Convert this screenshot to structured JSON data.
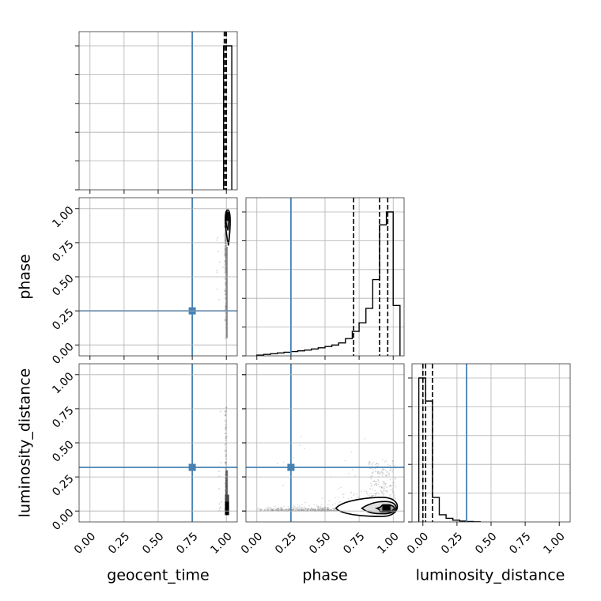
{
  "chart_data": {
    "type": "corner",
    "parameters": [
      "geocent_time",
      "phase",
      "luminosity_distance"
    ],
    "axis_labels": {
      "geocent_time": "geocent_time",
      "phase": "phase",
      "luminosity_distance": "luminosity_distance"
    },
    "axis_range": [
      -0.08,
      1.08
    ],
    "ticks": [
      0.0,
      0.25,
      0.5,
      0.75,
      1.0
    ],
    "tick_labels": [
      "0.00",
      "0.25",
      "0.50",
      "0.75",
      "1.00"
    ],
    "grid": true,
    "truths": {
      "geocent_time": 0.75,
      "phase": 0.25,
      "luminosity_distance": 0.32
    },
    "colors": {
      "truth": "#4682b4",
      "line": "#000000",
      "grid": "#b0b0b0",
      "scatter": "#7f7f7f"
    },
    "marginals": {
      "geocent_time": {
        "bin_edges": [
          0.98,
          1.04
        ],
        "counts": [
          1.0
        ],
        "quantiles": [
          0.985,
          0.996,
          1.0
        ]
      },
      "phase": {
        "bin_edges": [
          0.0,
          0.05,
          0.1,
          0.15,
          0.2,
          0.25,
          0.3,
          0.35,
          0.4,
          0.45,
          0.5,
          0.55,
          0.6,
          0.65,
          0.7,
          0.75,
          0.8,
          0.85,
          0.9,
          0.95,
          1.0,
          1.05
        ],
        "counts": [
          0.005,
          0.01,
          0.015,
          0.02,
          0.025,
          0.03,
          0.035,
          0.04,
          0.048,
          0.056,
          0.065,
          0.075,
          0.09,
          0.12,
          0.17,
          0.23,
          0.33,
          0.53,
          0.91,
          1.0,
          0.35
        ],
        "quantiles": [
          0.71,
          0.9,
          0.96
        ]
      },
      "luminosity_distance": {
        "bin_edges": [
          -0.03,
          0.02,
          0.07,
          0.12,
          0.17,
          0.22,
          0.27,
          0.32,
          0.37,
          0.42
        ],
        "counts": [
          1.0,
          0.84,
          0.17,
          0.05,
          0.025,
          0.012,
          0.006,
          0.003,
          0.001
        ],
        "quantiles": [
          0.0,
          0.02,
          0.07
        ]
      }
    },
    "joint": {
      "phase_vs_geocent_time": {
        "x_param": "geocent_time",
        "y_param": "phase",
        "contour_levels": [
          {
            "x_range": [
              0.995,
              1.025
            ],
            "y_top": 0.99,
            "y_neck": 0.86,
            "y_tip": 0.73
          },
          {
            "x_range": [
              0.998,
              1.015
            ],
            "y_top": 0.975,
            "y_neck": 0.9,
            "y_tip": 0.84
          }
        ],
        "density_core": {
          "x": [
            0.995,
            1.015
          ],
          "y": [
            0.91,
            0.97
          ]
        },
        "scatter_extent": {
          "x": [
            0.98,
            1.0
          ],
          "y": [
            0.03,
            0.93
          ]
        }
      },
      "luminosity_distance_vs_geocent_time": {
        "x_param": "geocent_time",
        "y_param": "luminosity_distance",
        "density_core": {
          "x": [
            0.99,
            1.02
          ],
          "y": [
            -0.03,
            0.07
          ]
        },
        "scatter_extent": {
          "x": [
            0.98,
            1.0
          ],
          "y": [
            0.0,
            0.76
          ]
        }
      },
      "luminosity_distance_vs_phase": {
        "x_param": "phase",
        "y_param": "luminosity_distance",
        "contour_levels": [
          {
            "center": [
              0.92,
              0.02
            ],
            "x_left": 0.58,
            "x_right": 1.05,
            "y_bottom": -0.04,
            "y_top": 0.1
          },
          {
            "center": [
              0.94,
              0.02
            ],
            "x_left": 0.77,
            "x_right": 1.03,
            "y_bottom": -0.02,
            "y_top": 0.07
          },
          {
            "center": [
              0.95,
              0.02
            ],
            "x_left": 0.88,
            "x_right": 1.01,
            "y_bottom": -0.005,
            "y_top": 0.045
          }
        ],
        "density_core": {
          "x": [
            0.92,
            0.98
          ],
          "y": [
            -0.01,
            0.05
          ]
        },
        "scatter_extent": {
          "x": [
            0.0,
            1.02
          ],
          "y": [
            0.0,
            0.55
          ]
        }
      }
    }
  }
}
